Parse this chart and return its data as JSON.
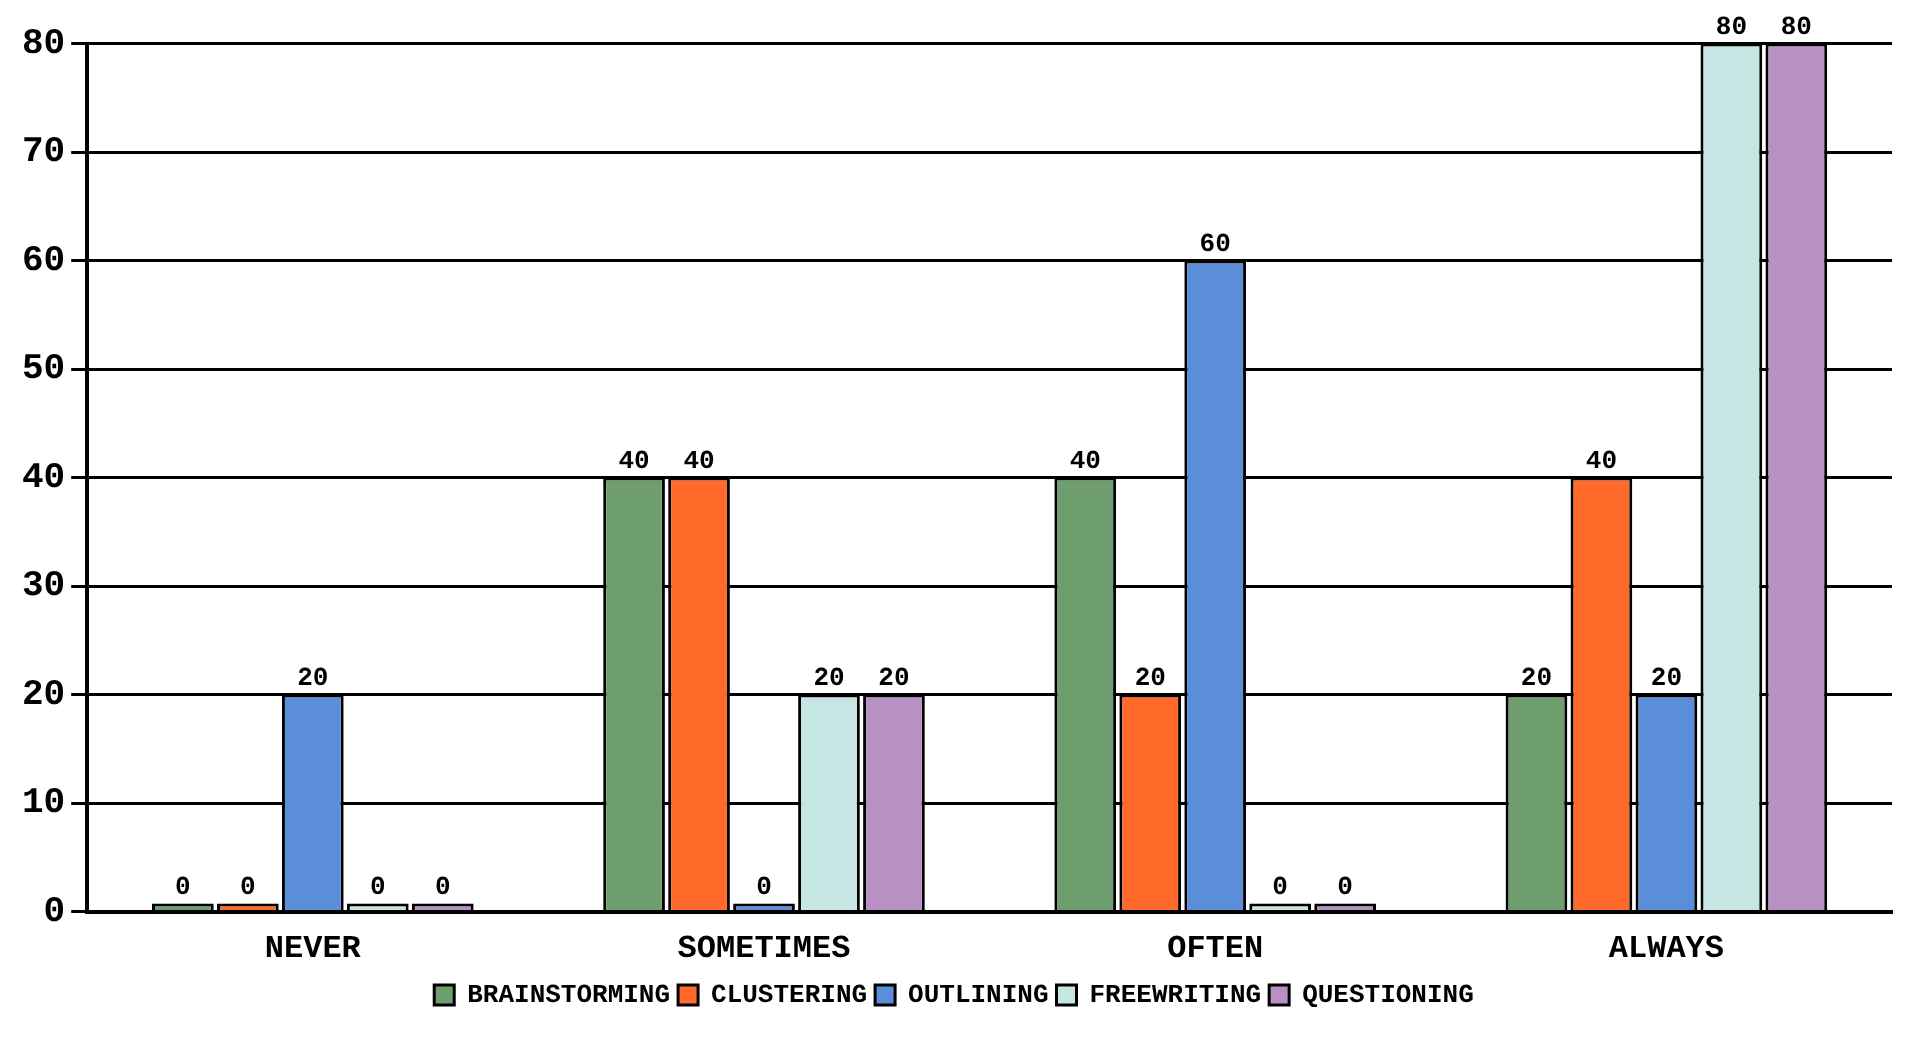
{
  "chart_data": {
    "type": "bar",
    "categories": [
      "NEVER",
      "SOMETIMES",
      "OFTEN",
      "ALWAYS"
    ],
    "series": [
      {
        "name": "BRAINSTORMING",
        "color": "#6e9e6e",
        "values": [
          0,
          40,
          40,
          20
        ]
      },
      {
        "name": "CLUSTERING",
        "color": "#ff6a2a",
        "values": [
          0,
          40,
          20,
          40
        ]
      },
      {
        "name": "OUTLINING",
        "color": "#5a8ed8",
        "values": [
          20,
          0,
          60,
          20
        ]
      },
      {
        "name": "FREEWRITING",
        "color": "#c6e6e4",
        "values": [
          0,
          20,
          0,
          80
        ]
      },
      {
        "name": "QUESTIONING",
        "color": "#b890c4",
        "values": [
          0,
          20,
          0,
          80
        ]
      }
    ],
    "ylim": [
      0,
      80
    ],
    "yticks": [
      0,
      10,
      20,
      30,
      40,
      50,
      60,
      70,
      80
    ],
    "grid": "y",
    "legend": "bottom",
    "data_labels": true
  }
}
